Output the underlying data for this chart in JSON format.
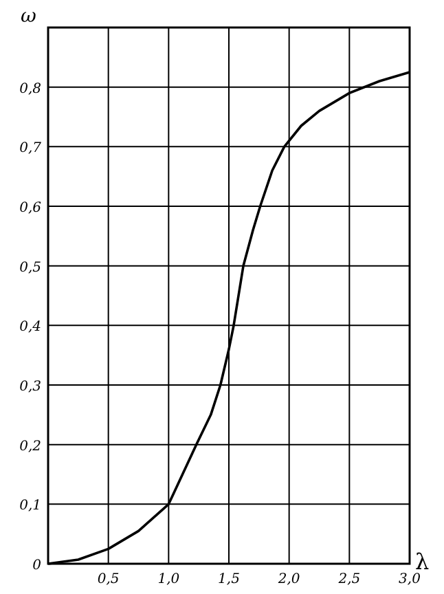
{
  "chart_data": {
    "type": "line",
    "xlabel": "λ",
    "ylabel": "ω",
    "grid": true,
    "marker": "none",
    "line_style": "solid",
    "xlim": [
      0,
      3.0
    ],
    "ylim": [
      0,
      0.9
    ],
    "xticks": [
      {
        "value": 0.5,
        "label": "0,5"
      },
      {
        "value": 1.0,
        "label": "1,0"
      },
      {
        "value": 1.5,
        "label": "1,5"
      },
      {
        "value": 2.0,
        "label": "2,0"
      },
      {
        "value": 2.5,
        "label": "2,5"
      },
      {
        "value": 3.0,
        "label": "3,0"
      }
    ],
    "yticks": [
      0,
      {
        "value": 0.1,
        "label": "0,1"
      },
      {
        "value": 0.2,
        "label": "0,2"
      },
      {
        "value": 0.3,
        "label": "0,3"
      },
      {
        "value": 0.4,
        "label": "0,4"
      },
      {
        "value": 0.5,
        "label": "0,5"
      },
      {
        "value": 0.6,
        "label": "0,6"
      },
      {
        "value": 0.7,
        "label": "0,7"
      },
      {
        "value": 0.8,
        "label": "0,8"
      },
      {
        "value": 0.9,
        "label": null
      }
    ],
    "series": [
      {
        "color": "#000000",
        "x": [
          0,
          0.25,
          0.5,
          0.75,
          1.0,
          1.23,
          1.35,
          1.43,
          1.5,
          1.54,
          1.58,
          1.62,
          1.7,
          1.76,
          1.86,
          1.96,
          2.1,
          2.25,
          2.5,
          2.75,
          3.0
        ],
        "values": [
          0,
          0.007,
          0.025,
          0.055,
          0.1,
          0.2,
          0.25,
          0.3,
          0.36,
          0.4,
          0.45,
          0.5,
          0.56,
          0.6,
          0.66,
          0.7,
          0.735,
          0.76,
          0.79,
          0.81,
          0.825
        ]
      }
    ]
  }
}
